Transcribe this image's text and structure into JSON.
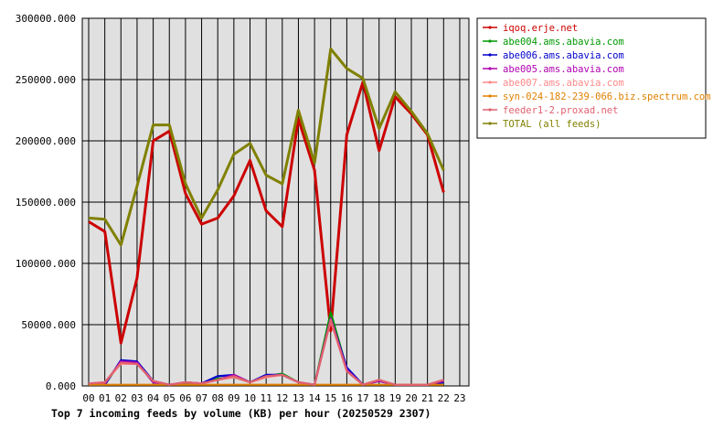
{
  "chart_data": {
    "type": "line",
    "title": "Top 7 incoming feeds by volume (KB) per hour (20250529 2307)",
    "xlabel": "",
    "ylabel": "",
    "categories": [
      "00",
      "01",
      "02",
      "03",
      "04",
      "05",
      "06",
      "07",
      "08",
      "09",
      "10",
      "11",
      "12",
      "13",
      "14",
      "15",
      "16",
      "17",
      "18",
      "19",
      "20",
      "21",
      "22",
      "23"
    ],
    "ylim": [
      0,
      300000
    ],
    "yticks": [
      "0.000",
      "50000.000",
      "100000.000",
      "150000.000",
      "200000.000",
      "250000.000",
      "300000.000"
    ],
    "ytick_values": [
      0,
      50000,
      100000,
      150000,
      200000,
      250000,
      300000
    ],
    "grid": true,
    "legend_position": "right",
    "series": [
      {
        "name": "iqoq.erje.net",
        "color": "#cc0000",
        "values": [
          134000,
          126000,
          35000,
          88000,
          200000,
          208000,
          157000,
          132000,
          137000,
          155000,
          184000,
          143000,
          130000,
          218000,
          176000,
          45000,
          205000,
          248000,
          192000,
          236000,
          222000,
          205000,
          158000,
          null
        ]
      },
      {
        "name": "abe004.ams.abavia.com",
        "color": "#009900",
        "values": [
          1000,
          1000,
          20000,
          19000,
          3000,
          1000,
          2000,
          2000,
          6000,
          7000,
          3000,
          8000,
          10000,
          3000,
          1000,
          60000,
          14000,
          1000,
          4000,
          1000,
          1000,
          1000,
          3000,
          null
        ]
      },
      {
        "name": "abe006.ams.abavia.com",
        "color": "#0000cc",
        "values": [
          1000,
          1000,
          21000,
          20000,
          4000,
          1000,
          3000,
          2000,
          8000,
          9000,
          3000,
          9000,
          9000,
          3000,
          1000,
          55000,
          15000,
          1000,
          4000,
          1000,
          1000,
          1000,
          3000,
          null
        ]
      },
      {
        "name": "abe005.ams.abavia.com",
        "color": "#b000b0",
        "values": [
          1000,
          2000,
          20000,
          19000,
          3000,
          1000,
          3000,
          2000,
          5000,
          9000,
          3000,
          8000,
          9000,
          3000,
          1000,
          55000,
          13000,
          1000,
          4000,
          1000,
          1000,
          1000,
          4000,
          null
        ]
      },
      {
        "name": "abe007.ams.abavia.com",
        "color": "#ff8888",
        "values": [
          2000,
          3000,
          18000,
          18000,
          4000,
          1000,
          3000,
          2000,
          5000,
          7000,
          3000,
          7000,
          9000,
          3000,
          1000,
          53000,
          12000,
          1000,
          5000,
          1000,
          1000,
          1000,
          5000,
          null
        ]
      },
      {
        "name": "syn-024-182-239-066.biz.spectrum.com",
        "color": "#e08000",
        "values": [
          1000,
          1000,
          1000,
          1000,
          1000,
          1000,
          1000,
          1000,
          1000,
          1000,
          1000,
          1000,
          1000,
          1000,
          1000,
          1000,
          1000,
          1000,
          1000,
          1000,
          1000,
          1000,
          1000,
          null
        ]
      },
      {
        "name": "feeder1-2.proxad.net",
        "color": "#e06070",
        "values": [
          2000,
          3000,
          19000,
          18000,
          4000,
          1000,
          3000,
          2000,
          5000,
          8000,
          3000,
          8000,
          9000,
          3000,
          1000,
          54000,
          12000,
          1000,
          5000,
          1000,
          1000,
          1000,
          5000,
          null
        ]
      },
      {
        "name": "TOTAL (all feeds)",
        "color": "#808000",
        "values": [
          137000,
          136000,
          115000,
          163000,
          213000,
          213000,
          165000,
          137000,
          160000,
          189000,
          198000,
          172000,
          165000,
          225000,
          182000,
          275000,
          259000,
          251000,
          210000,
          240000,
          224000,
          206000,
          176000,
          null
        ]
      }
    ]
  }
}
